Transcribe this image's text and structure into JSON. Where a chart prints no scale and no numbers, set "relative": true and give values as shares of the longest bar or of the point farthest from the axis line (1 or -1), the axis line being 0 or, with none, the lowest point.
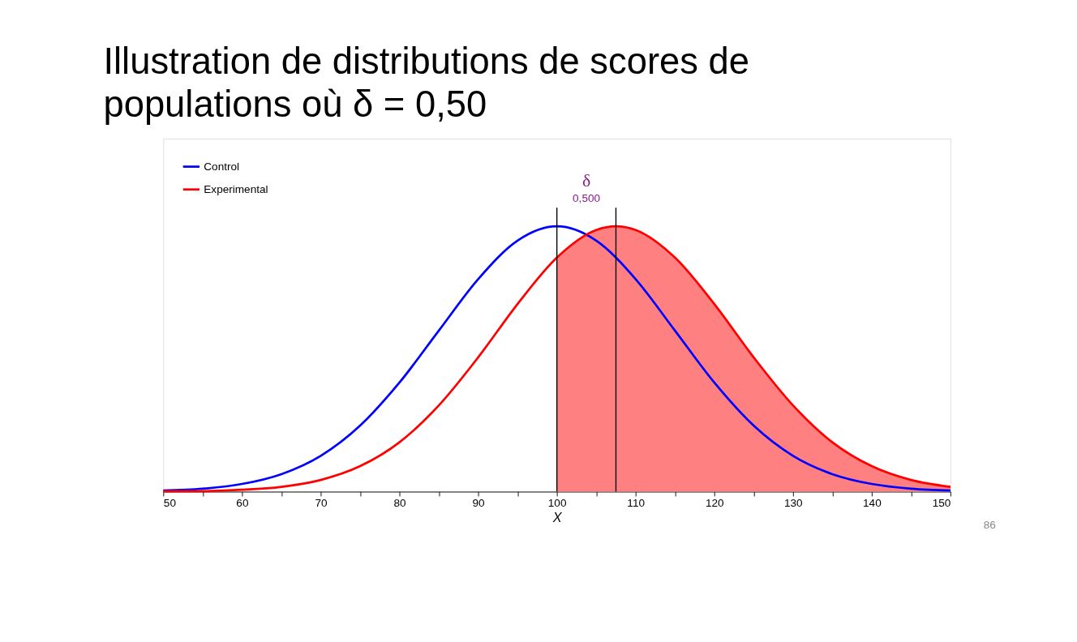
{
  "chart_data": {
    "type": "line",
    "title": "Illustration de distributions de scores de populations où δ = 0,50",
    "xlabel": "X",
    "relative": true,
    "xlim": [
      50,
      150
    ],
    "xticks": [
      50,
      {
        "value": 55,
        "label": null
      },
      60,
      {
        "value": 65,
        "label": null
      },
      70,
      {
        "value": 75,
        "label": null
      },
      80,
      {
        "value": 85,
        "label": null
      },
      90,
      {
        "value": 95,
        "label": null
      },
      100,
      {
        "value": 105,
        "label": null
      },
      110,
      {
        "value": 115,
        "label": null
      },
      120,
      {
        "value": 125,
        "label": null
      },
      130,
      {
        "value": 135,
        "label": null
      },
      140,
      {
        "value": 145,
        "label": null
      },
      150
    ],
    "series": [
      {
        "type": "area",
        "color": "#ff8080",
        "x": [
          100,
          105,
          107.5,
          110,
          115,
          120,
          125,
          130,
          135,
          140,
          145,
          150
        ],
        "values": [
          0.882,
          0.986,
          1,
          0.986,
          0.882,
          0.707,
          0.506,
          0.325,
          0.186,
          0.096,
          0.044,
          0.018
        ]
      },
      {
        "name": "Control",
        "color": "#0000ff",
        "x": [
          50,
          55,
          60,
          65,
          70,
          75,
          80,
          85,
          90,
          95,
          100,
          105,
          110,
          115,
          120,
          125,
          130,
          135,
          140,
          145,
          150
        ],
        "values": [
          0.004,
          0.011,
          0.029,
          0.066,
          0.135,
          0.249,
          0.411,
          0.607,
          0.801,
          0.946,
          1,
          0.946,
          0.801,
          0.607,
          0.411,
          0.249,
          0.135,
          0.066,
          0.029,
          0.011,
          0.004
        ]
      },
      {
        "name": "Experimental",
        "color": "#ff0000",
        "x": [
          50,
          55,
          60,
          65,
          70,
          75,
          80,
          85,
          90,
          95,
          100,
          105,
          107.5,
          110,
          115,
          120,
          125,
          130,
          135,
          140,
          145,
          150
        ],
        "values": [
          0.001,
          0.002,
          0.007,
          0.018,
          0.044,
          0.096,
          0.186,
          0.325,
          0.506,
          0.707,
          0.882,
          0.986,
          1,
          0.986,
          0.882,
          0.707,
          0.506,
          0.325,
          0.186,
          0.096,
          0.044,
          0.018
        ]
      }
    ],
    "ref_lines": [
      {
        "axis": "x",
        "value": 100,
        "color": "#000000"
      },
      {
        "axis": "x",
        "value": 107.5,
        "color": "#000000"
      }
    ],
    "annotations": [
      "δ",
      "0,500",
      "86"
    ],
    "legend": "top left",
    "grid": false
  }
}
